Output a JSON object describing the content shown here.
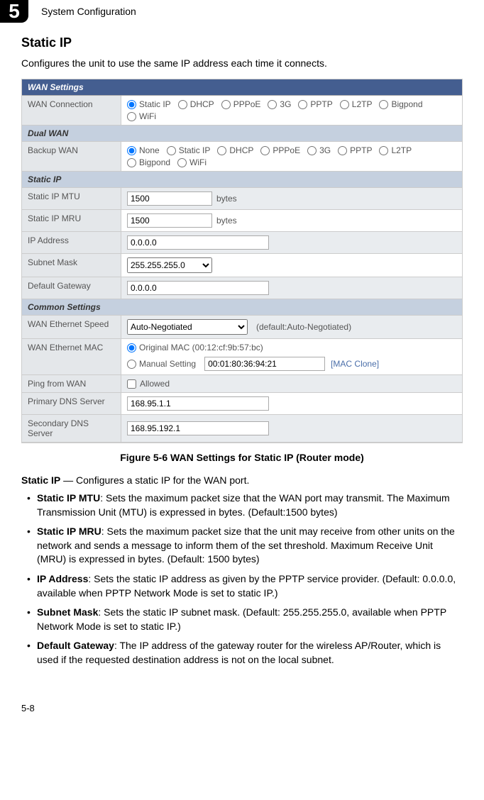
{
  "chapter": {
    "number": "5",
    "title": "System Configuration"
  },
  "section": {
    "heading": "Static IP",
    "intro": "Configures the unit to use the same IP address each time it connects."
  },
  "wan": {
    "title": "WAN Settings",
    "groups": {
      "wanConnection": {
        "label": "WAN Connection",
        "options": [
          "Static IP",
          "DHCP",
          "PPPoE",
          "3G",
          "PPTP",
          "L2TP",
          "Bigpond",
          "WiFi"
        ],
        "selected": "Static IP"
      },
      "dualWanHeader": "Dual WAN",
      "backupWan": {
        "label": "Backup WAN",
        "options": [
          "None",
          "Static IP",
          "DHCP",
          "PPPoE",
          "3G",
          "PPTP",
          "L2TP",
          "Bigpond",
          "WiFi"
        ],
        "selected": "None"
      },
      "staticHeader": "Static IP",
      "staticIpMtu": {
        "label": "Static IP MTU",
        "value": "1500",
        "unit": "bytes"
      },
      "staticIpMru": {
        "label": "Static IP MRU",
        "value": "1500",
        "unit": "bytes"
      },
      "ipAddress": {
        "label": "IP Address",
        "value": "0.0.0.0"
      },
      "subnetMask": {
        "label": "Subnet Mask",
        "value": "255.255.255.0"
      },
      "defaultGateway": {
        "label": "Default Gateway",
        "value": "0.0.0.0"
      },
      "commonHeader": "Common Settings",
      "wanSpeed": {
        "label": "WAN Ethernet Speed",
        "value": "Auto-Negotiated",
        "note": "(default:Auto-Negotiated)"
      },
      "wanMac": {
        "label": "WAN Ethernet MAC",
        "originalLabel": "Original MAC (00:12:cf:9b:57:bc)",
        "manualLabel": "Manual Setting",
        "manualValue": "00:01:80:36:94:21",
        "cloneLabel": "[MAC Clone]",
        "selected": "original"
      },
      "pingWan": {
        "label": "Ping from WAN",
        "checkLabel": "Allowed",
        "checked": false
      },
      "primaryDns": {
        "label": "Primary DNS Server",
        "value": "168.95.1.1"
      },
      "secondaryDns": {
        "label": "Secondary DNS Server",
        "value": "168.95.192.1"
      }
    }
  },
  "figure": {
    "caption": "Figure 5-6  WAN Settings for Static IP (Router mode)"
  },
  "description": {
    "lead_bold": "Static IP",
    "lead_rest": " — Configures a static IP for the WAN port.",
    "items": [
      {
        "bold": "Static IP MTU",
        "rest": ": Sets the maximum packet size that the WAN port may transmit. The Maximum Transmission Unit (MTU) is expressed in bytes. (Default:1500 bytes)"
      },
      {
        "bold": "Static IP MRU",
        "rest": ": Sets the maximum packet size that the unit may receive from other units on the network and sends a message to inform them of the set threshold. Maximum Receive Unit (MRU) is expressed in bytes. (Default: 1500 bytes)"
      },
      {
        "bold": "IP Address",
        "rest": ": Sets the static IP address as given by the PPTP service provider. (Default: 0.0.0.0, available when PPTP Network Mode is set to static IP.)"
      },
      {
        "bold": "Subnet Mask",
        "rest": ": Sets the static IP subnet mask. (Default: 255.255.255.0, available when PPTP Network Mode is set to static IP.)"
      },
      {
        "bold": "Default Gateway",
        "rest": ": The IP address of the gateway router for the wireless AP/Router, which is used if the requested destination address is not on the local subnet."
      }
    ]
  },
  "pageNumber": "5-8"
}
